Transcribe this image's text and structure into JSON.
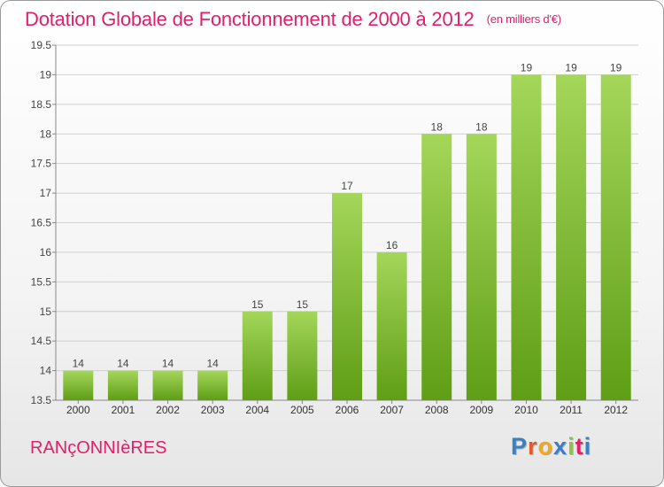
{
  "header": {
    "title": "Dotation Globale de Fonctionnement de 2000 à 2012",
    "unit": "(en milliers d'€)"
  },
  "footer": {
    "commune": "RANçONNIèRES",
    "logo": [
      "P",
      "r",
      "o",
      "x",
      "i",
      "t",
      "i"
    ],
    "logo_colors": [
      "#3b7fc4",
      "#e55a2b",
      "#f2a81d",
      "#3b7fc4",
      "#8cc540",
      "#e0206a",
      "#3b7fc4"
    ]
  },
  "colors": {
    "bar_light": "#a4d65a",
    "bar_dark": "#5f9e16",
    "title": "#e0206a"
  },
  "chart_data": {
    "type": "bar",
    "title": "Dotation Globale de Fonctionnement de 2000 à 2012",
    "subtitle": "(en milliers d'€)",
    "categories": [
      "2000",
      "2001",
      "2002",
      "2003",
      "2004",
      "2005",
      "2006",
      "2007",
      "2008",
      "2009",
      "2010",
      "2011",
      "2012"
    ],
    "values": [
      14,
      14,
      14,
      14,
      15,
      15,
      17,
      16,
      18,
      18,
      19,
      19,
      19
    ],
    "ylim": [
      13.5,
      19.5
    ],
    "yticks": [
      "13.5",
      "14",
      "14.5",
      "15",
      "15.5",
      "16",
      "16.5",
      "17",
      "17.5",
      "18",
      "18.5",
      "19",
      "19.5"
    ],
    "grid": true,
    "legend": "none"
  }
}
